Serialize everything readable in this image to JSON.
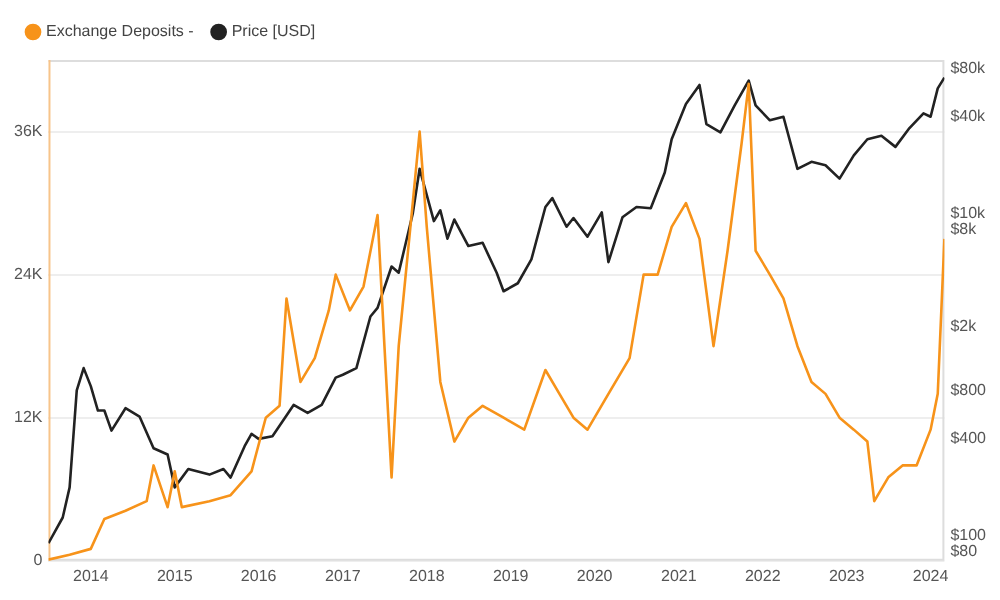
{
  "chart_data": {
    "type": "line",
    "legend": "top left",
    "grid": "y",
    "marker": "none",
    "line_style": "solid",
    "xlim": [
      "2013-07",
      "2024-03"
    ],
    "xticks": [
      {
        "value": "2014-01",
        "label": "2014"
      },
      {
        "value": "2015-01",
        "label": "2015"
      },
      {
        "value": "2016-01",
        "label": "2016"
      },
      {
        "value": "2017-01",
        "label": "2017"
      },
      {
        "value": "2018-01",
        "label": "2018"
      },
      {
        "value": "2019-01",
        "label": "2019"
      },
      {
        "value": "2020-01",
        "label": "2020"
      },
      {
        "value": "2021-01",
        "label": "2021"
      },
      {
        "value": "2022-01",
        "label": "2022"
      },
      {
        "value": "2023-01",
        "label": "2023"
      },
      {
        "value": "2024-01",
        "label": "2024"
      }
    ],
    "ylim": [
      0,
      42000
    ],
    "yticks": [
      0,
      {
        "value": 12000,
        "label": "12K"
      },
      {
        "value": 24000,
        "label": "24K"
      },
      {
        "value": 36000,
        "label": "36K"
      }
    ],
    "log": "y2",
    "y2lim": [
      70,
      90000
    ],
    "y2ticks": [
      {
        "value": 80,
        "label": "$80"
      },
      {
        "value": 100,
        "label": "$100"
      },
      {
        "value": 400,
        "label": "$400"
      },
      {
        "value": 800,
        "label": "$800"
      },
      {
        "value": 2000,
        "label": "$2k"
      },
      {
        "value": 8000,
        "label": "$8k"
      },
      {
        "value": 10000,
        "label": "$10k"
      },
      {
        "value": 40000,
        "label": "$40k"
      },
      {
        "value": 80000,
        "label": "$80k"
      }
    ],
    "series": [
      {
        "name": "Exchange Deposits -",
        "color": "#f7931a",
        "x": [
          "2013-07",
          "2013-10",
          "2014-01",
          "2014-03",
          "2014-06",
          "2014-09",
          "2014-10",
          "2014-12",
          "2015-01",
          "2015-02",
          "2015-06",
          "2015-09",
          "2015-12",
          "2016-02",
          "2016-04",
          "2016-05",
          "2016-07",
          "2016-09",
          "2016-11",
          "2016-12",
          "2017-02",
          "2017-04",
          "2017-06",
          "2017-07",
          "2017-08",
          "2017-09",
          "2017-11",
          "2017-12",
          "2018-01",
          "2018-03",
          "2018-05",
          "2018-07",
          "2018-09",
          "2018-12",
          "2019-03",
          "2019-06",
          "2019-08",
          "2019-10",
          "2019-12",
          "2020-03",
          "2020-06",
          "2020-08",
          "2020-10",
          "2020-12",
          "2021-02",
          "2021-04",
          "2021-06",
          "2021-08",
          "2021-10",
          "2021-11",
          "2021-12",
          "2022-02",
          "2022-04",
          "2022-06",
          "2022-08",
          "2022-10",
          "2022-12",
          "2023-02",
          "2023-04",
          "2023-05",
          "2023-07",
          "2023-09",
          "2023-11",
          "2024-01",
          "2024-02",
          "2024-03"
        ],
        "values": [
          100,
          500,
          1000,
          3500,
          4200,
          5000,
          8000,
          4500,
          7500,
          4500,
          5000,
          5500,
          7500,
          12000,
          13000,
          22000,
          15000,
          17000,
          21000,
          24000,
          21000,
          23000,
          29000,
          18000,
          7000,
          18000,
          30000,
          36000,
          28000,
          15000,
          10000,
          12000,
          13000,
          12000,
          11000,
          16000,
          14000,
          12000,
          11000,
          14000,
          17000,
          24000,
          24000,
          28000,
          30000,
          27000,
          18000,
          26000,
          35000,
          40000,
          26000,
          24000,
          22000,
          18000,
          15000,
          14000,
          12000,
          11000,
          10000,
          5000,
          7000,
          8000,
          8000,
          11000,
          14000,
          27000
        ]
      },
      {
        "name": "Price [USD]",
        "color": "#222222",
        "axis": "y2",
        "x": [
          "2013-07",
          "2013-09",
          "2013-10",
          "2013-11",
          "2013-12",
          "2014-01",
          "2014-02",
          "2014-03",
          "2014-04",
          "2014-06",
          "2014-08",
          "2014-10",
          "2014-12",
          "2015-01",
          "2015-03",
          "2015-06",
          "2015-08",
          "2015-09",
          "2015-11",
          "2015-12",
          "2016-01",
          "2016-03",
          "2016-06",
          "2016-08",
          "2016-10",
          "2016-12",
          "2017-01",
          "2017-03",
          "2017-05",
          "2017-06",
          "2017-08",
          "2017-09",
          "2017-11",
          "2017-12",
          "2018-02",
          "2018-03",
          "2018-04",
          "2018-05",
          "2018-07",
          "2018-09",
          "2018-11",
          "2018-12",
          "2019-02",
          "2019-04",
          "2019-06",
          "2019-07",
          "2019-09",
          "2019-10",
          "2019-12",
          "2020-02",
          "2020-03",
          "2020-05",
          "2020-07",
          "2020-09",
          "2020-11",
          "2020-12",
          "2021-02",
          "2021-04",
          "2021-05",
          "2021-07",
          "2021-09",
          "2021-11",
          "2021-12",
          "2022-02",
          "2022-04",
          "2022-06",
          "2022-08",
          "2022-10",
          "2022-12",
          "2023-02",
          "2023-04",
          "2023-06",
          "2023-08",
          "2023-10",
          "2023-12",
          "2024-01",
          "2024-02",
          "2024-03"
        ],
        "values": [
          90,
          130,
          200,
          800,
          1100,
          850,
          600,
          600,
          450,
          620,
          550,
          350,
          320,
          200,
          260,
          240,
          260,
          230,
          360,
          430,
          400,
          415,
          650,
          580,
          650,
          960,
          1000,
          1100,
          2300,
          2600,
          4700,
          4300,
          10000,
          19000,
          9000,
          10500,
          7000,
          9200,
          6300,
          6600,
          4300,
          3300,
          3700,
          5200,
          11000,
          12500,
          8300,
          9400,
          7200,
          10200,
          5000,
          9500,
          11000,
          10800,
          18000,
          29000,
          48000,
          63000,
          36000,
          32000,
          47000,
          67000,
          47000,
          38000,
          40000,
          19000,
          21000,
          20000,
          16500,
          23000,
          29000,
          30500,
          26000,
          34000,
          42000,
          40000,
          60000,
          70000
        ]
      }
    ]
  }
}
